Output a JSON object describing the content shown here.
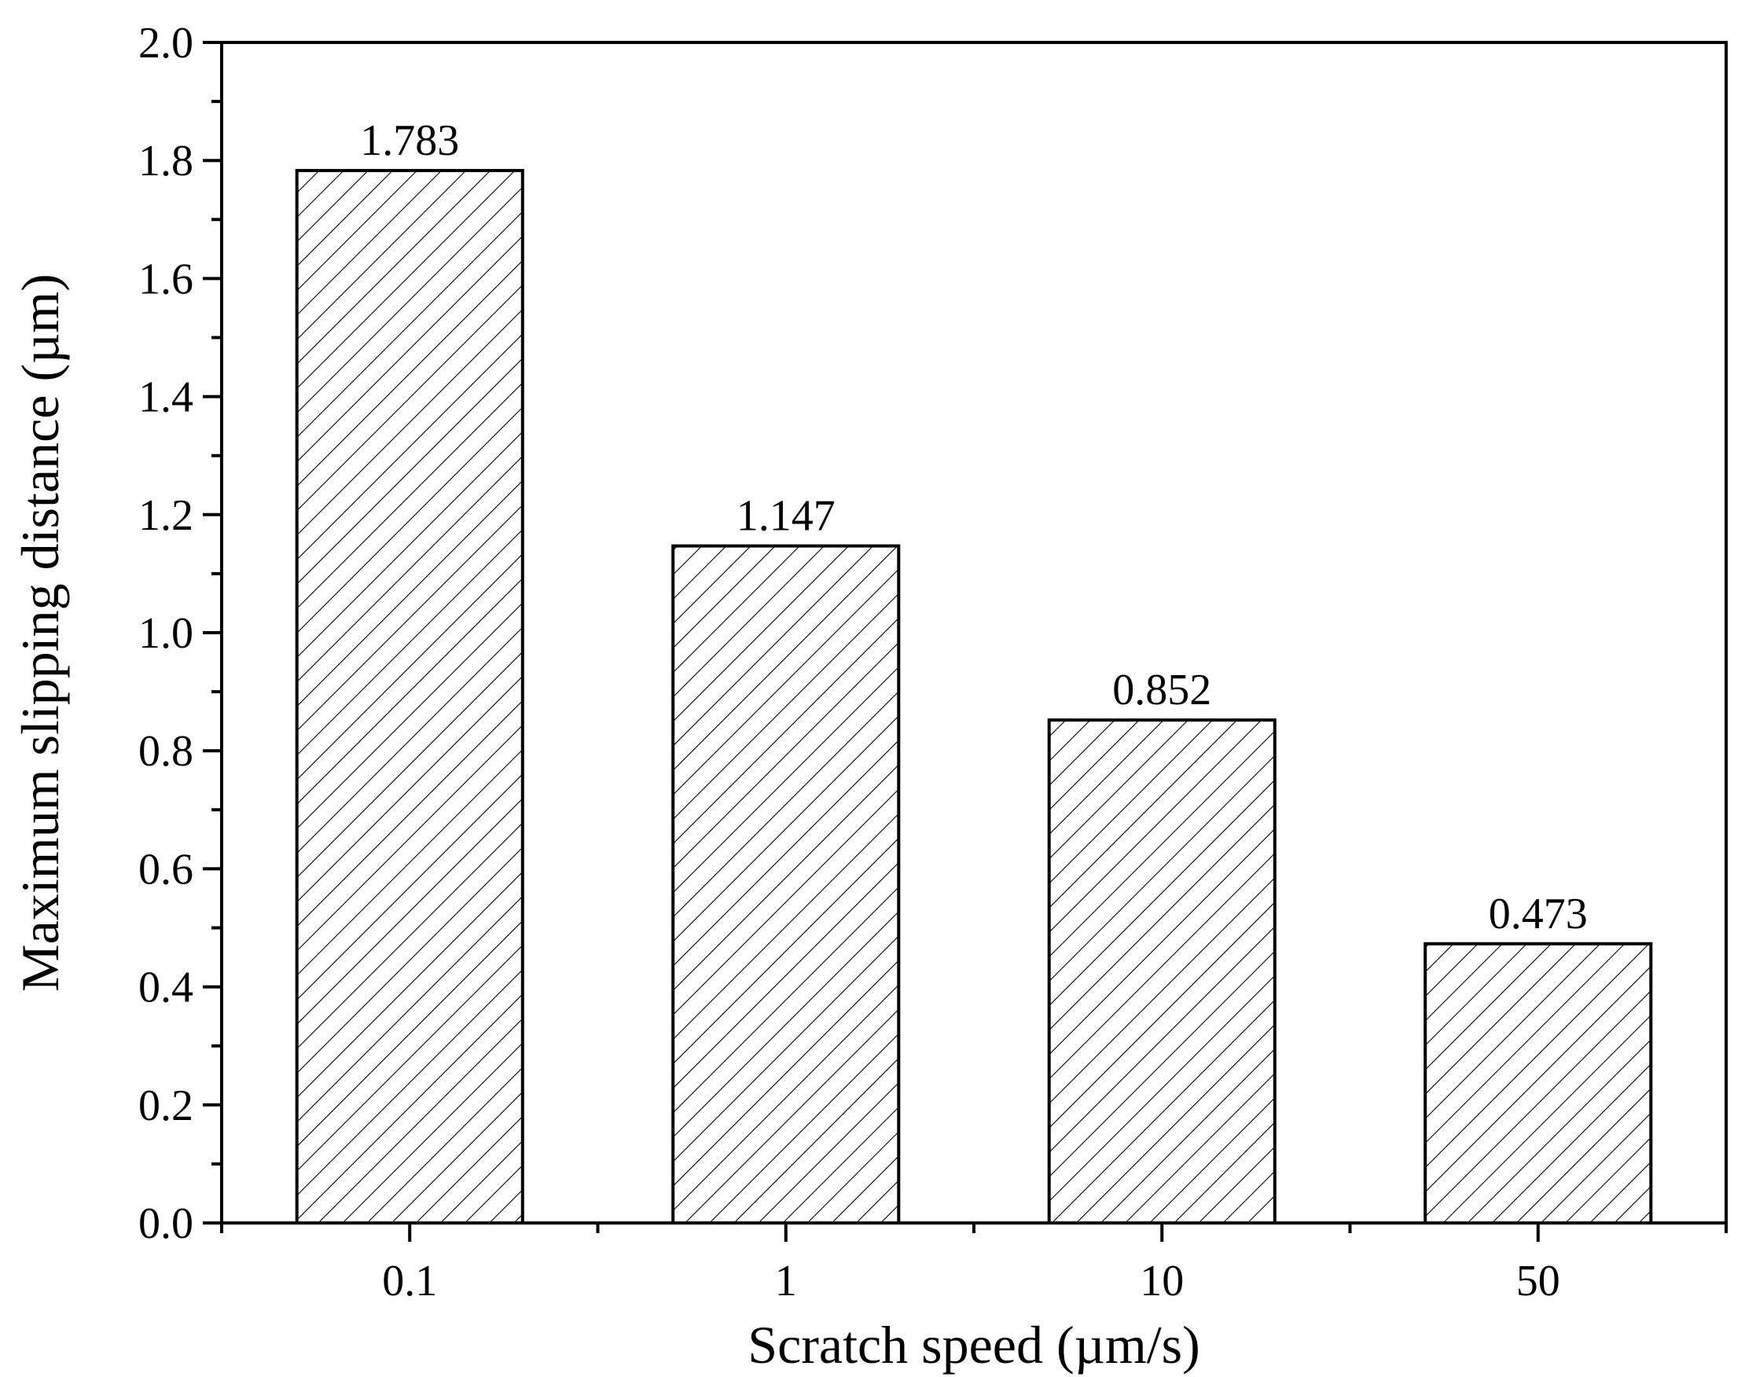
{
  "chart_data": {
    "type": "bar",
    "title": "",
    "xlabel": "Scratch speed (µm/s)",
    "ylabel": "Maximum slipping distance (µm)",
    "categories": [
      "0.1",
      "1",
      "10",
      "50"
    ],
    "values": [
      1.783,
      1.147,
      0.852,
      0.473
    ],
    "value_labels": [
      "1.783",
      "1.147",
      "0.852",
      "0.473"
    ],
    "ylim": [
      0.0,
      2.0
    ],
    "yticks": [
      "0.0",
      "0.2",
      "0.4",
      "0.6",
      "0.8",
      "1.0",
      "1.2",
      "1.4",
      "1.6",
      "1.8",
      "2.0"
    ],
    "grid": false,
    "legend": "none",
    "bar_fill": "diagonal-hatch",
    "colors": {
      "bar_edge": "#000000",
      "hatch": "#000000",
      "background": "#ffffff"
    }
  }
}
